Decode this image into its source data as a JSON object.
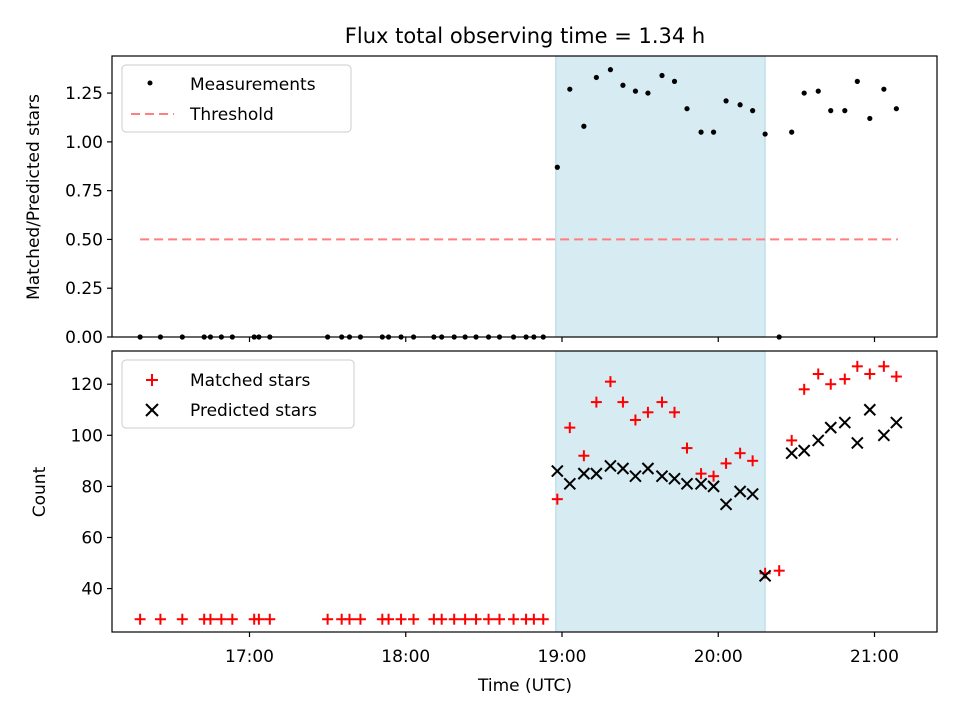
{
  "chart_data": [
    {
      "type": "scatter",
      "title": "Flux total observing time = 1.34 h",
      "xlabel": "",
      "ylabel": "Matched/Predicted stars",
      "xlim": [
        16.12,
        21.4
      ],
      "ylim": [
        0.0,
        1.44
      ],
      "yticks": [
        0.0,
        0.25,
        0.5,
        0.75,
        1.0,
        1.25
      ],
      "yticklabels": [
        "0.00",
        "0.25",
        "0.50",
        "0.75",
        "1.00",
        "1.25"
      ],
      "legend_position": "top-left",
      "highlight_span": [
        18.96,
        20.3
      ],
      "threshold": {
        "label": "Threshold",
        "value": 0.5,
        "x_range": [
          16.3,
          21.15
        ],
        "color": "#ff7f7f"
      },
      "series": [
        {
          "name": "Measurements",
          "color": "#000000",
          "marker": "dot",
          "x": [
            16.3,
            16.43,
            16.57,
            16.71,
            16.75,
            16.82,
            16.89,
            17.03,
            17.06,
            17.13,
            17.5,
            17.59,
            17.64,
            17.71,
            17.85,
            17.89,
            17.97,
            18.05,
            18.18,
            18.23,
            18.31,
            18.38,
            18.45,
            18.53,
            18.6,
            18.69,
            18.77,
            18.82,
            18.88,
            18.97,
            19.05,
            19.14,
            19.22,
            19.31,
            19.39,
            19.47,
            19.55,
            19.64,
            19.72,
            19.8,
            19.89,
            19.97,
            20.05,
            20.14,
            20.22,
            20.3,
            20.39,
            20.47,
            20.55,
            20.64,
            20.72,
            20.81,
            20.89,
            20.97,
            21.06,
            21.14
          ],
          "y": [
            0,
            0,
            0,
            0,
            0,
            0,
            0,
            0,
            0,
            0,
            0,
            0,
            0,
            0,
            0,
            0,
            0,
            0,
            0,
            0,
            0,
            0,
            0,
            0,
            0,
            0,
            0,
            0,
            0,
            0.87,
            1.27,
            1.08,
            1.33,
            1.37,
            1.29,
            1.26,
            1.25,
            1.34,
            1.31,
            1.17,
            1.05,
            1.05,
            1.21,
            1.19,
            1.16,
            1.04,
            0.0,
            1.05,
            1.25,
            1.26,
            1.16,
            1.16,
            1.31,
            1.12,
            1.27,
            1.17
          ]
        }
      ]
    },
    {
      "type": "scatter",
      "title": "",
      "xlabel": "Time (UTC)",
      "ylabel": "Count",
      "xlim": [
        16.12,
        21.4
      ],
      "ylim": [
        23,
        133
      ],
      "yticks": [
        40,
        60,
        80,
        100,
        120
      ],
      "yticklabels": [
        "40",
        "60",
        "80",
        "100",
        "120"
      ],
      "xticks": [
        17,
        18,
        19,
        20,
        21
      ],
      "xticklabels": [
        "17:00",
        "18:00",
        "19:00",
        "20:00",
        "21:00"
      ],
      "legend_position": "top-left",
      "highlight_span": [
        18.96,
        20.3
      ],
      "series": [
        {
          "name": "Matched stars",
          "color": "#ff0000",
          "marker": "plus",
          "x": [
            16.3,
            16.43,
            16.57,
            16.71,
            16.75,
            16.82,
            16.89,
            17.03,
            17.06,
            17.13,
            17.5,
            17.59,
            17.64,
            17.71,
            17.85,
            17.89,
            17.97,
            18.05,
            18.18,
            18.23,
            18.31,
            18.38,
            18.45,
            18.53,
            18.6,
            18.69,
            18.77,
            18.82,
            18.88,
            18.97,
            19.05,
            19.14,
            19.22,
            19.31,
            19.39,
            19.47,
            19.55,
            19.64,
            19.72,
            19.8,
            19.89,
            19.97,
            20.05,
            20.14,
            20.22,
            20.3,
            20.39,
            20.47,
            20.55,
            20.64,
            20.72,
            20.81,
            20.89,
            20.97,
            21.06,
            21.14
          ],
          "y": [
            28,
            28,
            28,
            28,
            28,
            28,
            28,
            28,
            28,
            28,
            28,
            28,
            28,
            28,
            28,
            28,
            28,
            28,
            28,
            28,
            28,
            28,
            28,
            28,
            28,
            28,
            28,
            28,
            28,
            75,
            103,
            92,
            113,
            121,
            113,
            106,
            109,
            113,
            109,
            95,
            85,
            84,
            89,
            93,
            90,
            46,
            47,
            98,
            118,
            124,
            120,
            122,
            127,
            124,
            127,
            123
          ]
        },
        {
          "name": "Predicted stars",
          "color": "#000000",
          "marker": "x",
          "x": [
            18.97,
            19.05,
            19.14,
            19.22,
            19.31,
            19.39,
            19.47,
            19.55,
            19.64,
            19.72,
            19.8,
            19.89,
            19.97,
            20.05,
            20.14,
            20.22,
            20.3,
            20.47,
            20.55,
            20.64,
            20.72,
            20.81,
            20.89,
            20.97,
            21.06,
            21.14
          ],
          "y": [
            86,
            81,
            85,
            85,
            88,
            87,
            84,
            87,
            84,
            83,
            81,
            81,
            80,
            73,
            78,
            77,
            45,
            93,
            94,
            98,
            103,
            105,
            97,
            110,
            100,
            105
          ]
        }
      ]
    }
  ]
}
